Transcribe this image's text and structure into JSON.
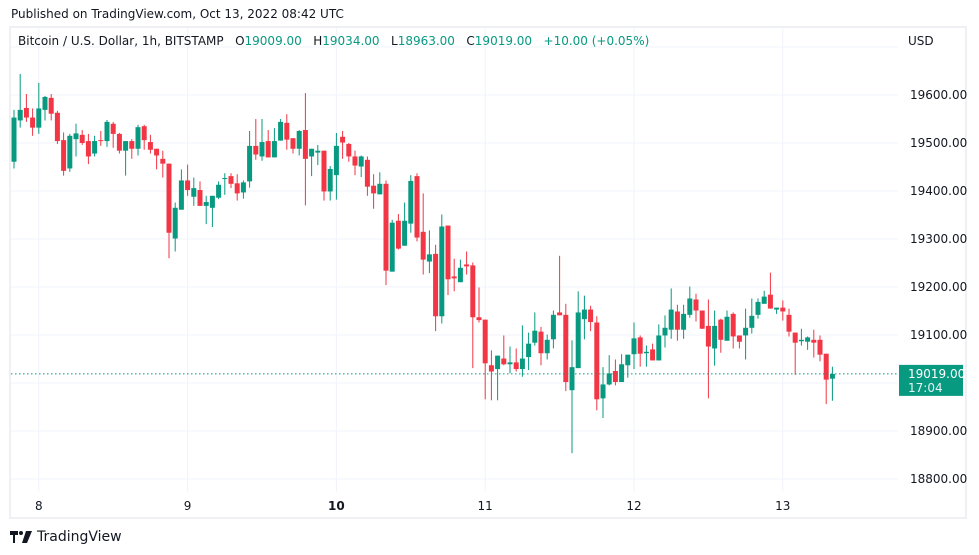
{
  "published": "Published on TradingView.com, Oct 13, 2022 08:42 UTC",
  "legend": {
    "symbol": "Bitcoin / U.S. Dollar, 1h, BITSTAMP",
    "o_label": "O",
    "o": "19009.00",
    "h_label": "H",
    "h": "19034.00",
    "l_label": "L",
    "l": "18963.00",
    "c_label": "C",
    "c": "19019.00",
    "change": "+10.00 (+0.05%)"
  },
  "currency": "USD",
  "last_price": {
    "price": "19019.00",
    "countdown": "17:04"
  },
  "footer": {
    "brand": "TradingView"
  },
  "colors": {
    "up": "#089981",
    "down": "#f23645",
    "grid": "#f0f3fa",
    "frame": "#eef0f4"
  },
  "chart_data": {
    "type": "candlestick",
    "interval": "1h",
    "ylim": [
      18750,
      19700
    ],
    "yticks": [
      18800,
      18900,
      19000,
      19100,
      19200,
      19300,
      19400,
      19500,
      19600
    ],
    "ytick_labels": [
      "18800.00",
      "18900.00",
      "",
      "19100.00",
      "19200.00",
      "19300.00",
      "19400.00",
      "19500.00",
      "19600.00"
    ],
    "xticks": [
      {
        "label": "8",
        "candle": 4
      },
      {
        "label": "9",
        "candle": 28
      },
      {
        "label": "10",
        "candle": 52,
        "bold": true
      },
      {
        "label": "11",
        "candle": 76
      },
      {
        "label": "12",
        "candle": 100
      },
      {
        "label": "13",
        "candle": 124
      }
    ],
    "grid": true,
    "last_price_line": 19019,
    "ohlc_fields": [
      "open",
      "high",
      "low",
      "close"
    ],
    "candles": [
      [
        19461,
        19569,
        19447,
        19553
      ],
      [
        19547,
        19644,
        19532,
        19569
      ],
      [
        19573,
        19602,
        19544,
        19553
      ],
      [
        19553,
        19572,
        19515,
        19532
      ],
      [
        19532,
        19625,
        19519,
        19572
      ],
      [
        19569,
        19598,
        19547,
        19596
      ],
      [
        19594,
        19602,
        19547,
        19561
      ],
      [
        19563,
        19567,
        19498,
        19504
      ],
      [
        19506,
        19522,
        19432,
        19442
      ],
      [
        19447,
        19519,
        19440,
        19515
      ],
      [
        19508,
        19540,
        19472,
        19520
      ],
      [
        19517,
        19527,
        19496,
        19500
      ],
      [
        19504,
        19519,
        19456,
        19472
      ],
      [
        19478,
        19515,
        19472,
        19504
      ],
      [
        19506,
        19525,
        19494,
        19504
      ],
      [
        19504,
        19548,
        19492,
        19544
      ],
      [
        19540,
        19544,
        19490,
        19519
      ],
      [
        19519,
        19521,
        19478,
        19484
      ],
      [
        19484,
        19504,
        19432,
        19504
      ],
      [
        19504,
        19508,
        19467,
        19488
      ],
      [
        19488,
        19538,
        19474,
        19533
      ],
      [
        19535,
        19538,
        19486,
        19506
      ],
      [
        19502,
        19517,
        19478,
        19486
      ],
      [
        19488,
        19488,
        19445,
        19474
      ],
      [
        19467,
        19484,
        19428,
        19457
      ],
      [
        19457,
        19457,
        19260,
        19313
      ],
      [
        19301,
        19376,
        19274,
        19365
      ],
      [
        19361,
        19445,
        19361,
        19422
      ],
      [
        19422,
        19455,
        19390,
        19402
      ],
      [
        19388,
        19428,
        19369,
        19406
      ],
      [
        19402,
        19420,
        19369,
        19369
      ],
      [
        19369,
        19390,
        19331,
        19377
      ],
      [
        19365,
        19390,
        19325,
        19390
      ],
      [
        19386,
        19420,
        19383,
        19413
      ],
      [
        19425,
        19437,
        19392,
        19427
      ],
      [
        19431,
        19437,
        19406,
        19415
      ],
      [
        19416,
        19435,
        19380,
        19395
      ],
      [
        19397,
        19422,
        19384,
        19418
      ],
      [
        19420,
        19525,
        19407,
        19494
      ],
      [
        19494,
        19550,
        19465,
        19476
      ],
      [
        19472,
        19550,
        19463,
        19502
      ],
      [
        19504,
        19527,
        19470,
        19470
      ],
      [
        19470,
        19531,
        19470,
        19504
      ],
      [
        19505,
        19550,
        19505,
        19544
      ],
      [
        19542,
        19560,
        19486,
        19507
      ],
      [
        19510,
        19510,
        19478,
        19488
      ],
      [
        19488,
        19527,
        19474,
        19525
      ],
      [
        19527,
        19604,
        19370,
        19467
      ],
      [
        19472,
        19488,
        19431,
        19488
      ],
      [
        19480,
        19496,
        19454,
        19484
      ],
      [
        19484,
        19484,
        19380,
        19399
      ],
      [
        19399,
        19452,
        19380,
        19446
      ],
      [
        19433,
        19521,
        19382,
        19494
      ],
      [
        19513,
        19525,
        19467,
        19501
      ],
      [
        19498,
        19500,
        19461,
        19472
      ],
      [
        19472,
        19484,
        19433,
        19453
      ],
      [
        19451,
        19474,
        19429,
        19472
      ],
      [
        19465,
        19472,
        19390,
        19409
      ],
      [
        19411,
        19435,
        19363,
        19395
      ],
      [
        19393,
        19439,
        19393,
        19415
      ],
      [
        19415,
        19422,
        19204,
        19234
      ],
      [
        19232,
        19340,
        19232,
        19334
      ],
      [
        19338,
        19352,
        19278,
        19280
      ],
      [
        19286,
        19376,
        19286,
        19338
      ],
      [
        19332,
        19433,
        19313,
        19421
      ],
      [
        19431,
        19437,
        19295,
        19303
      ],
      [
        19315,
        19395,
        19226,
        19257
      ],
      [
        19253,
        19318,
        19229,
        19268
      ],
      [
        19269,
        19288,
        19108,
        19139
      ],
      [
        19139,
        19351,
        19124,
        19326
      ],
      [
        19328,
        19328,
        19183,
        19216
      ],
      [
        19222,
        19259,
        19191,
        19218
      ],
      [
        19210,
        19257,
        19210,
        19240
      ],
      [
        19247,
        19274,
        19226,
        19243
      ],
      [
        19245,
        19251,
        19031,
        19137
      ],
      [
        19137,
        19199,
        19126,
        19131
      ],
      [
        19132,
        19132,
        18966,
        19041
      ],
      [
        19037,
        19068,
        18964,
        19024
      ],
      [
        19029,
        19057,
        18964,
        19057
      ],
      [
        19051,
        19099,
        19037,
        19039
      ],
      [
        19039,
        19076,
        19020,
        19043
      ],
      [
        19043,
        19072,
        19024,
        19029
      ],
      [
        19029,
        19120,
        19013,
        19051
      ],
      [
        19054,
        19105,
        19027,
        19082
      ],
      [
        19084,
        19147,
        19078,
        19109
      ],
      [
        19107,
        19117,
        19037,
        19062
      ],
      [
        19062,
        19101,
        19049,
        19090
      ],
      [
        19091,
        19151,
        19072,
        19142
      ],
      [
        19147,
        19265,
        19141,
        19141
      ],
      [
        19142,
        19165,
        18983,
        19002
      ],
      [
        18985,
        19089,
        18854,
        19033
      ],
      [
        19031,
        19191,
        19031,
        19147
      ],
      [
        19133,
        19182,
        19091,
        19153
      ],
      [
        19153,
        19161,
        19108,
        19127
      ],
      [
        19126,
        19139,
        18943,
        18966
      ],
      [
        18968,
        19033,
        18927,
        18997
      ],
      [
        18997,
        19058,
        18995,
        19020
      ],
      [
        19025,
        19049,
        18995,
        19002
      ],
      [
        19002,
        19060,
        19002,
        19039
      ],
      [
        19037,
        19059,
        19011,
        19059
      ],
      [
        19060,
        19126,
        19029,
        19093
      ],
      [
        19095,
        19099,
        19034,
        19061
      ],
      [
        19062,
        19078,
        19034,
        19065
      ],
      [
        19070,
        19082,
        19047,
        19047
      ],
      [
        19047,
        19122,
        19047,
        19099
      ],
      [
        19099,
        19141,
        19074,
        19115
      ],
      [
        19111,
        19197,
        19092,
        19153
      ],
      [
        19149,
        19163,
        19088,
        19111
      ],
      [
        19111,
        19163,
        19092,
        19144
      ],
      [
        19142,
        19201,
        19136,
        19176
      ],
      [
        19174,
        19186,
        19128,
        19151
      ],
      [
        19151,
        19151,
        19113,
        19113
      ],
      [
        19119,
        19174,
        18968,
        19076
      ],
      [
        19072,
        19151,
        19036,
        19119
      ],
      [
        19132,
        19134,
        19063,
        19090
      ],
      [
        19088,
        19151,
        19088,
        19138
      ],
      [
        19144,
        19147,
        19072,
        19097
      ],
      [
        19099,
        19099,
        19072,
        19086
      ],
      [
        19099,
        19155,
        19049,
        19115
      ],
      [
        19115,
        19176,
        19103,
        19140
      ],
      [
        19142,
        19176,
        19134,
        19169
      ],
      [
        19165,
        19192,
        19165,
        19180
      ],
      [
        19184,
        19230,
        19155,
        19155
      ],
      [
        19153,
        19157,
        19144,
        19157
      ],
      [
        19157,
        19172,
        19130,
        19149
      ],
      [
        19142,
        19155,
        19097,
        19107
      ],
      [
        19105,
        19105,
        19017,
        19084
      ],
      [
        19087,
        19113,
        19078,
        19090
      ],
      [
        19086,
        19097,
        19069,
        19095
      ],
      [
        19090,
        19111,
        19053,
        19084
      ],
      [
        19090,
        19099,
        19045,
        19059
      ],
      [
        19061,
        19061,
        18956,
        19007
      ],
      [
        19009,
        19034,
        18963,
        19019
      ]
    ]
  }
}
